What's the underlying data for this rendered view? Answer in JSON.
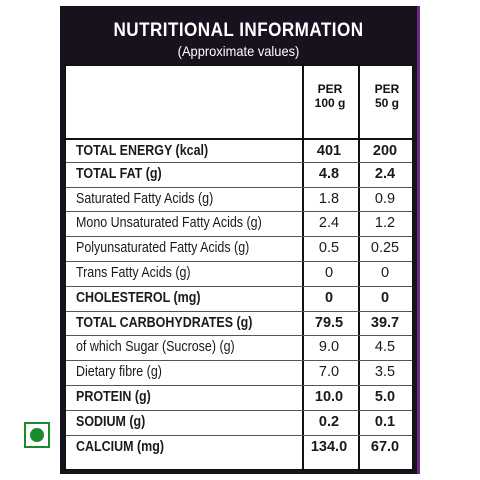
{
  "header": {
    "title": "NUTRITIONAL INFORMATION",
    "subtitle": "(Approximate values)"
  },
  "columns": [
    {
      "line1": "PER",
      "line2": "100 g"
    },
    {
      "line1": "PER",
      "line2": "50 g"
    }
  ],
  "rows": [
    {
      "label": "TOTAL ENERGY (kcal)",
      "per100": "401",
      "per50": "200",
      "bold": true
    },
    {
      "label": "TOTAL FAT (g)",
      "per100": "4.8",
      "per50": "2.4",
      "bold": true
    },
    {
      "label": "Saturated Fatty Acids (g)",
      "per100": "1.8",
      "per50": "0.9",
      "bold": false
    },
    {
      "label": "Mono Unsaturated Fatty Acids (g)",
      "per100": "2.4",
      "per50": "1.2",
      "bold": false
    },
    {
      "label": "Polyunsaturated Fatty Acids (g)",
      "per100": "0.5",
      "per50": "0.25",
      "bold": false
    },
    {
      "label": "Trans Fatty Acids (g)",
      "per100": "0",
      "per50": "0",
      "bold": false
    },
    {
      "label": "CHOLESTEROL (mg)",
      "per100": "0",
      "per50": "0",
      "bold": true
    },
    {
      "label": "TOTAL CARBOHYDRATES (g)",
      "per100": "79.5",
      "per50": "39.7",
      "bold": true
    },
    {
      "label": "of which Sugar (Sucrose) (g)",
      "per100": "9.0",
      "per50": "4.5",
      "bold": false
    },
    {
      "label": "Dietary fibre (g)",
      "per100": "7.0",
      "per50": "3.5",
      "bold": false
    },
    {
      "label": "PROTEIN (g)",
      "per100": "10.0",
      "per50": "5.0",
      "bold": true
    },
    {
      "label": "SODIUM (g)",
      "per100": "0.2",
      "per50": "0.1",
      "bold": true
    },
    {
      "label": "CALCIUM (mg)",
      "per100": "134.0",
      "per50": "67.0",
      "bold": true
    }
  ],
  "colors": {
    "panel": "#17121d",
    "accent": "#6b2a8a",
    "veg_green": "#1a8a2e"
  },
  "icons": {
    "veg_mark": "veg-symbol-icon"
  }
}
